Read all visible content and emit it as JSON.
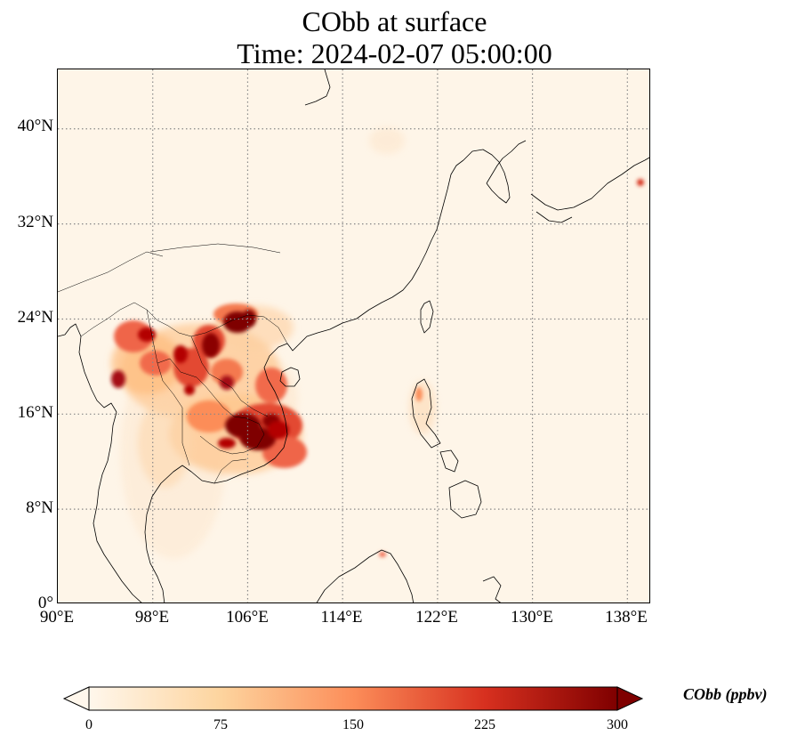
{
  "title": {
    "line1": "CObb at surface",
    "line2": "Time: 2024-02-07 05:00:00"
  },
  "map": {
    "projection": "PlateCarree",
    "lon_range": [
      90,
      140
    ],
    "lat_range": [
      0,
      45
    ],
    "gridlines": "dotted",
    "xticks": [
      "90°E",
      "98°E",
      "106°E",
      "114°E",
      "122°E",
      "130°E",
      "138°E"
    ],
    "yticks": [
      "0°",
      "8°N",
      "16°N",
      "24°N",
      "32°N",
      "40°N"
    ]
  },
  "colorbar": {
    "label": "CObb (ppbv)",
    "ticks": [
      "0",
      "75",
      "150",
      "225",
      "300"
    ],
    "colormap": "OrRd",
    "colors": [
      "#fff7ec",
      "#fdd49e",
      "#fc8d59",
      "#d7301f",
      "#7f0000"
    ]
  }
}
